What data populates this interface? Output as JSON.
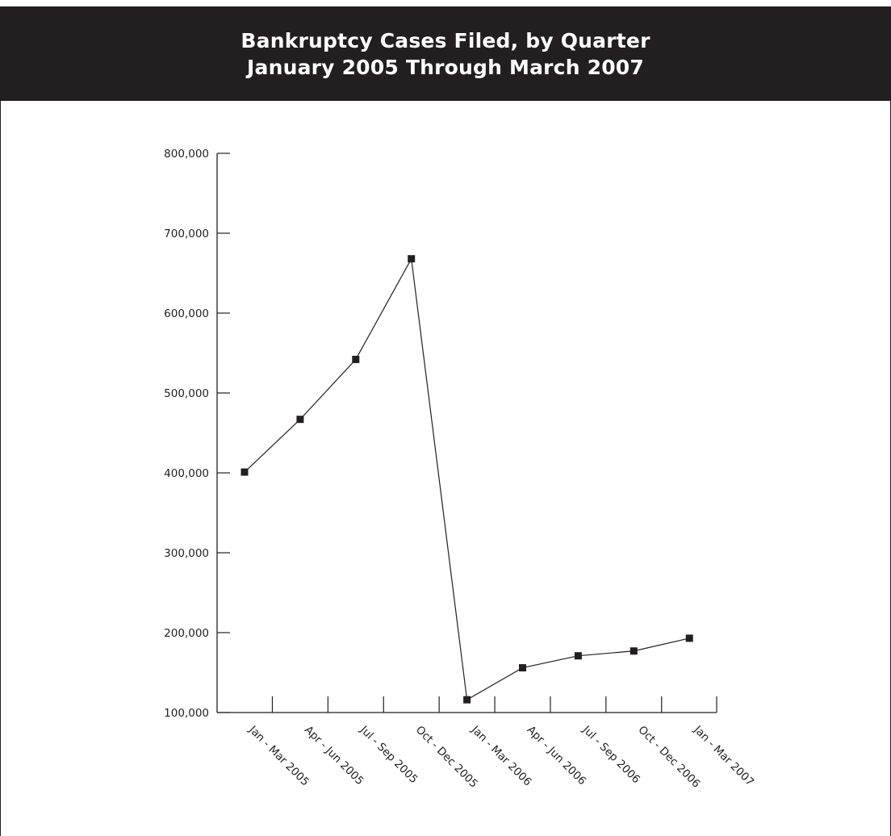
{
  "chart_data": {
    "type": "line",
    "title": "Bankruptcy Cases Filed, by Quarter",
    "subtitle": "January 2005 Through March 2007",
    "xlabel": "",
    "ylabel": "",
    "categories": [
      "Jan - Mar 2005",
      "Apr - Jun 2005",
      "Jul - Sep 2005",
      "Oct - Dec 2005",
      "Jan - Mar 2006",
      "Apr - Jun 2006",
      "Jul - Sep 2006",
      "Oct - Dec 2006",
      "Jan - Mar 2007"
    ],
    "series": [
      {
        "values": [
          401000,
          467000,
          542000,
          668000,
          116000,
          156000,
          171000,
          177000,
          193000
        ]
      }
    ],
    "ylim": [
      100000,
      800000
    ],
    "yticks": [
      800000,
      700000,
      600000,
      500000,
      400000,
      300000,
      200000,
      100000
    ],
    "ytick_labels": [
      "800,000",
      "700,000",
      "600,000",
      "500,000",
      "400,000",
      "300,000",
      "200,000",
      "100,000"
    ],
    "grid": false,
    "legend": "none",
    "colors": {
      "header_bg": "#231f20",
      "header_text": "#ffffff",
      "line": "#231f20",
      "marker": "#231f20"
    }
  }
}
